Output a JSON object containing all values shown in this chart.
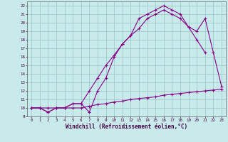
{
  "line1_x": [
    0,
    1,
    2,
    3,
    4,
    5,
    6,
    7,
    8,
    9,
    10,
    11,
    12,
    13,
    14,
    15,
    16,
    17,
    18,
    19,
    20,
    21,
    22,
    23
  ],
  "line1_y": [
    10,
    10,
    10,
    10,
    10,
    10,
    10,
    10.2,
    10.4,
    10.5,
    10.7,
    10.8,
    11.0,
    11.1,
    11.2,
    11.3,
    11.5,
    11.6,
    11.7,
    11.8,
    11.9,
    12.0,
    12.1,
    12.2
  ],
  "line2_x": [
    0,
    1,
    2,
    3,
    4,
    5,
    6,
    7,
    8,
    9,
    10,
    11,
    12,
    13,
    14,
    15,
    16,
    17,
    18,
    19,
    20,
    21
  ],
  "line2_y": [
    10,
    10,
    9.5,
    10,
    10,
    10.5,
    10.5,
    12,
    13.5,
    15,
    16.2,
    17.5,
    18.5,
    19.3,
    20.5,
    21,
    21.5,
    21,
    20.5,
    19.5,
    18,
    16.5
  ],
  "line3_x": [
    0,
    1,
    2,
    3,
    4,
    5,
    6,
    7,
    8,
    9,
    10,
    11,
    12,
    13,
    14,
    15,
    16,
    17,
    18,
    19,
    20,
    21,
    22,
    23
  ],
  "line3_y": [
    10,
    10,
    9.5,
    10,
    10,
    10.5,
    10.5,
    9.5,
    12,
    13.5,
    16,
    17.5,
    18.5,
    20.5,
    21,
    21.5,
    22,
    21.5,
    21,
    19.5,
    19,
    20.5,
    16.5,
    12.5
  ],
  "color": "#880088",
  "marker": "+",
  "background": "#c8eaea",
  "grid_color": "#98c4c4",
  "xlabel": "Windchill (Refroidissement éolien,°C)",
  "ylim": [
    9,
    22.5
  ],
  "xlim": [
    -0.5,
    23.5
  ],
  "yticks": [
    9,
    10,
    11,
    12,
    13,
    14,
    15,
    16,
    17,
    18,
    19,
    20,
    21,
    22
  ],
  "xticks": [
    0,
    1,
    2,
    3,
    4,
    5,
    6,
    7,
    8,
    9,
    10,
    11,
    12,
    13,
    14,
    15,
    16,
    17,
    18,
    19,
    20,
    21,
    22,
    23
  ],
  "label_fontsize": 5.5,
  "tick_fontsize": 4.2,
  "markersize": 2.5,
  "linewidth": 0.8
}
